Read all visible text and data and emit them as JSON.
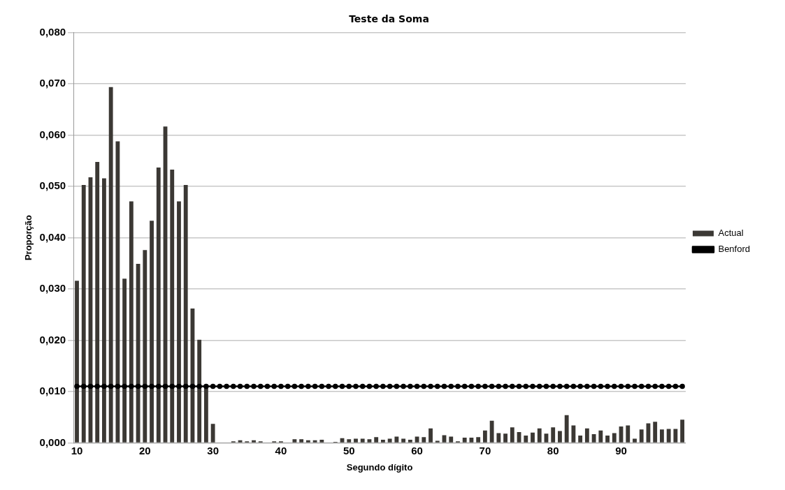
{
  "chart_data": {
    "type": "bar",
    "title": "Teste da Soma",
    "xlabel": "Segundo dígito",
    "ylabel": "Proporção",
    "categories": [
      "10",
      null,
      null,
      null,
      null,
      null,
      null,
      null,
      null,
      null,
      "20",
      null,
      null,
      null,
      null,
      null,
      null,
      null,
      null,
      null,
      "30",
      null,
      null,
      null,
      null,
      null,
      null,
      null,
      null,
      null,
      "40",
      null,
      null,
      null,
      null,
      null,
      null,
      null,
      null,
      null,
      "50",
      null,
      null,
      null,
      null,
      null,
      null,
      null,
      null,
      null,
      "60",
      null,
      null,
      null,
      null,
      null,
      null,
      null,
      null,
      null,
      "70",
      null,
      null,
      null,
      null,
      null,
      null,
      null,
      null,
      null,
      "80",
      null,
      null,
      null,
      null,
      null,
      null,
      null,
      null,
      null,
      "90",
      null,
      null,
      null,
      null,
      null,
      null,
      null,
      null,
      null
    ],
    "series": [
      {
        "name": "Actual",
        "color": "#3b3834",
        "values": [
          0.0316,
          0.0503,
          0.0518,
          0.0548,
          0.0516,
          0.0694,
          0.0588,
          0.032,
          0.0471,
          0.0349,
          0.0376,
          0.0433,
          0.0537,
          0.0617,
          0.0533,
          0.0471,
          0.0503,
          0.0262,
          0.0201,
          0.0111,
          0.0037,
          0,
          0,
          0.0003,
          0.0005,
          0.0003,
          0.0005,
          0.0003,
          0,
          0.0003,
          0.0003,
          0,
          0.0007,
          0.0007,
          0.0005,
          0.0005,
          0.0006,
          0,
          0.0002,
          0.0009,
          0.0007,
          0.0008,
          0.0008,
          0.0007,
          0.0011,
          0.0006,
          0.0008,
          0.0012,
          0.0008,
          0.0006,
          0.0012,
          0.0011,
          0.0028,
          0.0004,
          0.0015,
          0.0012,
          0.0003,
          0.001,
          0.001,
          0.0011,
          0.0024,
          0.0043,
          0.0019,
          0.0018,
          0.003,
          0.0021,
          0.0014,
          0.002,
          0.0028,
          0.0018,
          0.003,
          0.0023,
          0.0054,
          0.0034,
          0.0014,
          0.0028,
          0.0017,
          0.0024,
          0.0014,
          0.0019,
          0.0032,
          0.0034,
          0.0008,
          0.0026,
          0.0038,
          0.0041,
          0.0026,
          0.0027,
          0.0027,
          0.0045
        ]
      },
      {
        "name": "Benford",
        "type": "line",
        "color": "#000000",
        "values": [
          0.011,
          0.011,
          0.011,
          0.011,
          0.011,
          0.011,
          0.011,
          0.011,
          0.011,
          0.011,
          0.011,
          0.011,
          0.011,
          0.011,
          0.011,
          0.011,
          0.011,
          0.011,
          0.011,
          0.011,
          0.011,
          0.011,
          0.011,
          0.011,
          0.011,
          0.011,
          0.011,
          0.011,
          0.011,
          0.011,
          0.011,
          0.011,
          0.011,
          0.011,
          0.011,
          0.011,
          0.011,
          0.011,
          0.011,
          0.011,
          0.011,
          0.011,
          0.011,
          0.011,
          0.011,
          0.011,
          0.011,
          0.011,
          0.011,
          0.011,
          0.011,
          0.011,
          0.011,
          0.011,
          0.011,
          0.011,
          0.011,
          0.011,
          0.011,
          0.011,
          0.011,
          0.011,
          0.011,
          0.011,
          0.011,
          0.011,
          0.011,
          0.011,
          0.011,
          0.011,
          0.011,
          0.011,
          0.011,
          0.011,
          0.011,
          0.011,
          0.011,
          0.011,
          0.011,
          0.011,
          0.011,
          0.011,
          0.011,
          0.011,
          0.011,
          0.011,
          0.011,
          0.011,
          0.011,
          0.011
        ]
      }
    ],
    "ylim": [
      0,
      0.08
    ],
    "yticks": [
      {
        "value": 0,
        "label": "0,000"
      },
      {
        "value": 0.01,
        "label": "0,010"
      },
      {
        "value": 0.02,
        "label": "0,020"
      },
      {
        "value": 0.03,
        "label": "0,030"
      },
      {
        "value": 0.04,
        "label": "0,040"
      },
      {
        "value": 0.05,
        "label": "0,050"
      },
      {
        "value": 0.06,
        "label": "0,060"
      },
      {
        "value": 0.07,
        "label": "0,070"
      },
      {
        "value": 0.08,
        "label": "0,080"
      }
    ],
    "grid": "y",
    "legend": "right",
    "marker": "circle",
    "line_style": "solid"
  }
}
